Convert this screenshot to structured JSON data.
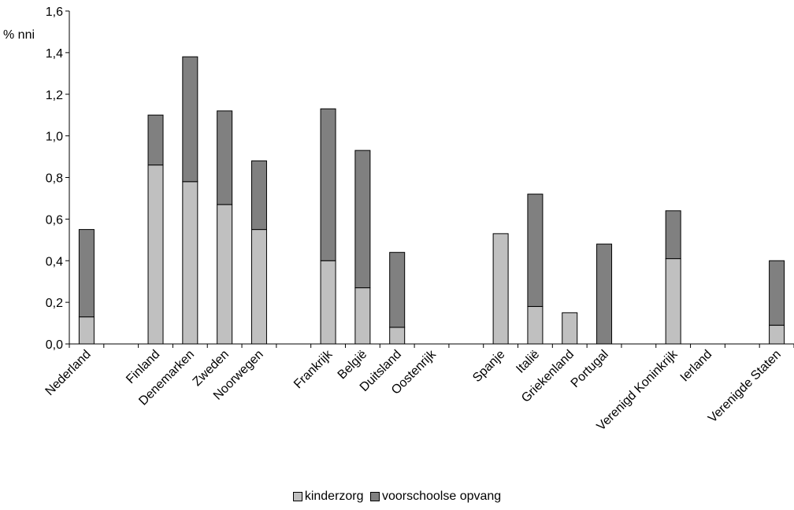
{
  "chart_data": {
    "type": "bar",
    "stacked": true,
    "ylabel": "% nni",
    "xlabel": "",
    "ylim": [
      0,
      1.6
    ],
    "ytick_step": 0.2,
    "ytick_labels": [
      "0,0",
      "0,2",
      "0,4",
      "0,6",
      "0,8",
      "1,0",
      "1,2",
      "1,4",
      "1,6"
    ],
    "grid": false,
    "legend_position": "bottom",
    "categories": [
      "Nederland",
      "",
      "Finland",
      "Denemarken",
      "Zweden",
      "Noorwegen",
      "",
      "Frankrijk",
      "België",
      "Duitsland",
      "Oostenrijk",
      "",
      "Spanje",
      "Italië",
      "Griekenland",
      "Portugal",
      "",
      "Verenigd Koninkrijk",
      "Ierland",
      "",
      "Verenigde Staten"
    ],
    "series": [
      {
        "name": "kinderzorg",
        "color": "#c0c0c0",
        "values": [
          0.13,
          null,
          0.86,
          0.78,
          0.67,
          0.55,
          null,
          0.4,
          0.27,
          0.08,
          0,
          null,
          0.53,
          0.18,
          0.15,
          0,
          null,
          0.41,
          0,
          null,
          0.09
        ]
      },
      {
        "name": "voorschoolse opvang",
        "color": "#808080",
        "values": [
          0.42,
          null,
          0.24,
          0.6,
          0.45,
          0.33,
          null,
          0.73,
          0.66,
          0.36,
          0,
          null,
          0,
          0.54,
          0,
          0.48,
          null,
          0.23,
          0,
          null,
          0.31
        ]
      }
    ]
  }
}
